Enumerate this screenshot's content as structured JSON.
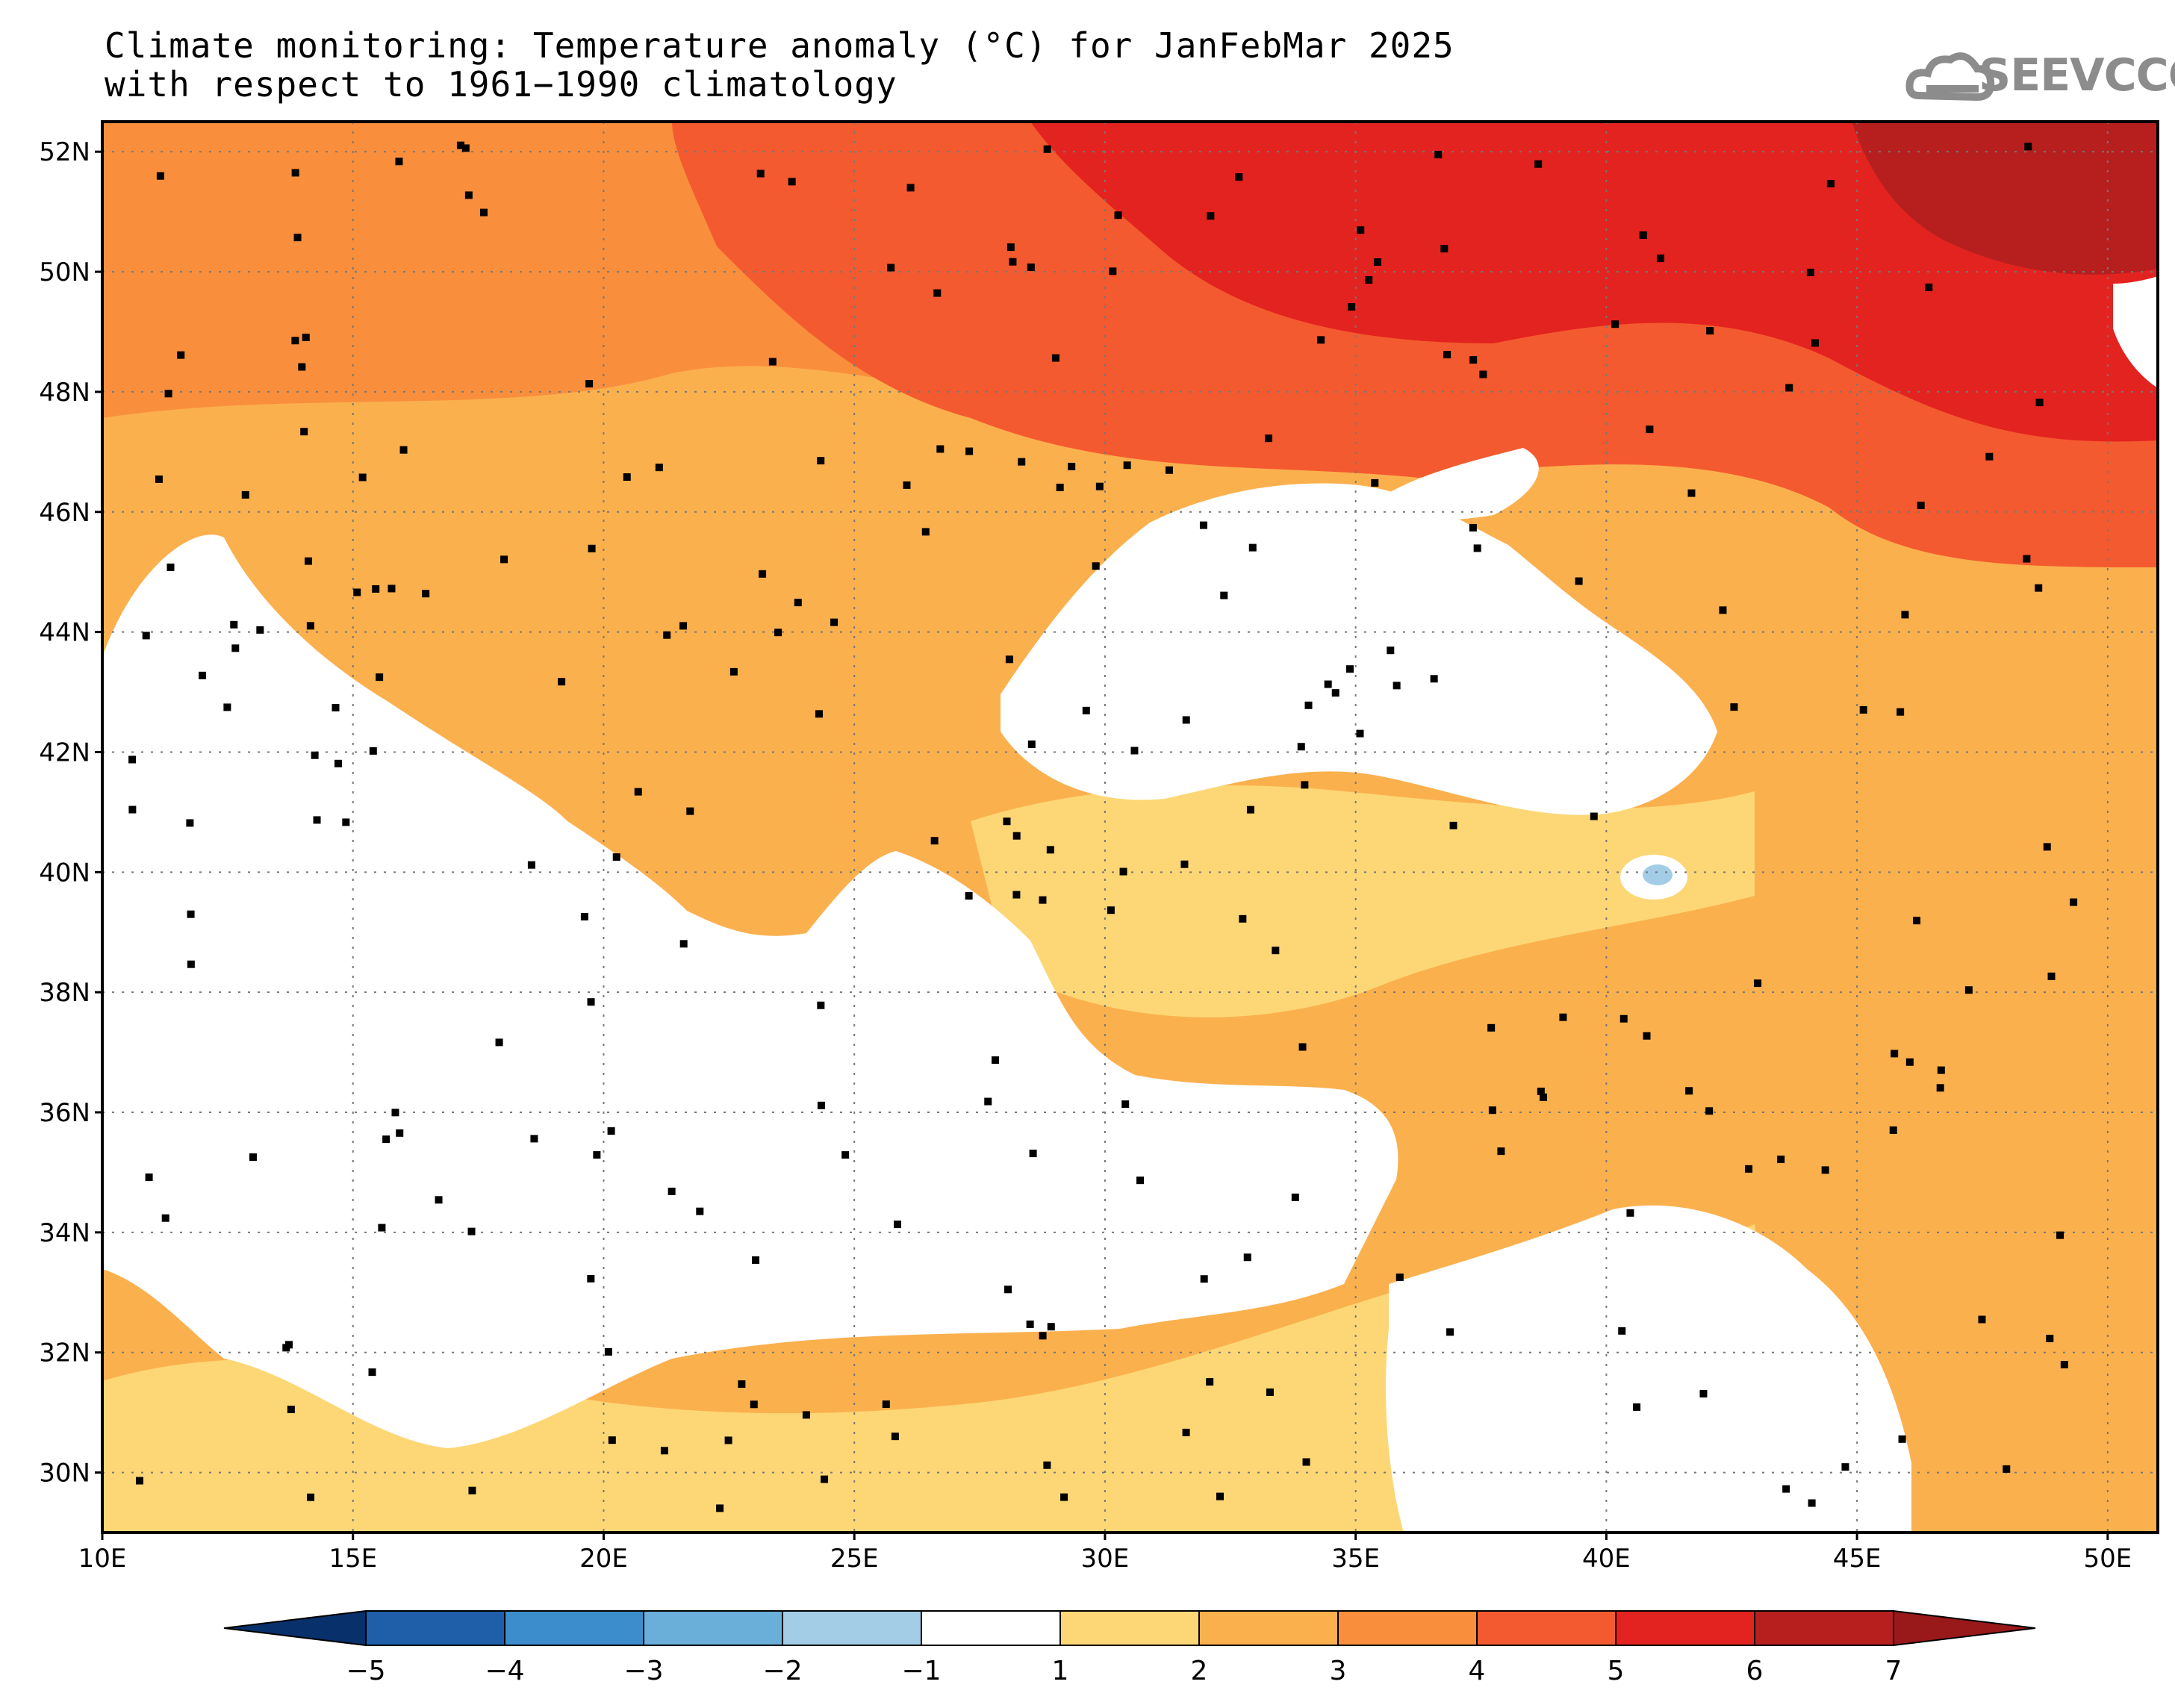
{
  "title": {
    "line1": "Climate monitoring: Temperature anomaly (°C) for JanFebMar 2025",
    "line2": "with respect to 1961−1990 climatology"
  },
  "logo": {
    "text": "SEEVCCC",
    "icon": "cloud-icon"
  },
  "map": {
    "lat_labels": [
      "52N",
      "50N",
      "48N",
      "46N",
      "44N",
      "42N",
      "40N",
      "38N",
      "36N",
      "34N",
      "32N",
      "30N"
    ],
    "lat_values": [
      52,
      50,
      48,
      46,
      44,
      42,
      40,
      38,
      36,
      34,
      32,
      30
    ],
    "lon_labels": [
      "10E",
      "15E",
      "20E",
      "25E",
      "30E",
      "35E",
      "40E",
      "45E",
      "50E"
    ],
    "lon_values": [
      10,
      15,
      20,
      25,
      30,
      35,
      40,
      45,
      50
    ],
    "lon_range": [
      10,
      51
    ],
    "lat_range": [
      29,
      52.5
    ],
    "gridlines": true
  },
  "colorbar": {
    "labels": [
      "−5",
      "−4",
      "−3",
      "−2",
      "−1",
      "1",
      "2",
      "3",
      "4",
      "5",
      "6",
      "7"
    ],
    "low_extend_color": "#08306b",
    "high_extend_color": "#99191a",
    "colors": [
      "#1f5ea8",
      "#3b8dcc",
      "#6aafd9",
      "#a3cde6",
      "#ffffff",
      "#fdd776",
      "#fbb04e",
      "#f98f3d",
      "#f45a2f",
      "#e3231f",
      "#b71f1f"
    ]
  },
  "colors": {
    "ocean": "#ffffff",
    "level_1_2": "#fdd776",
    "level_2_3": "#fbb04e",
    "level_3_4": "#f98f3d",
    "level_4_5": "#f45a2f",
    "level_5_6": "#e3231f",
    "level_6_7": "#b71f1f",
    "cold_spot": "#a3cde6"
  }
}
